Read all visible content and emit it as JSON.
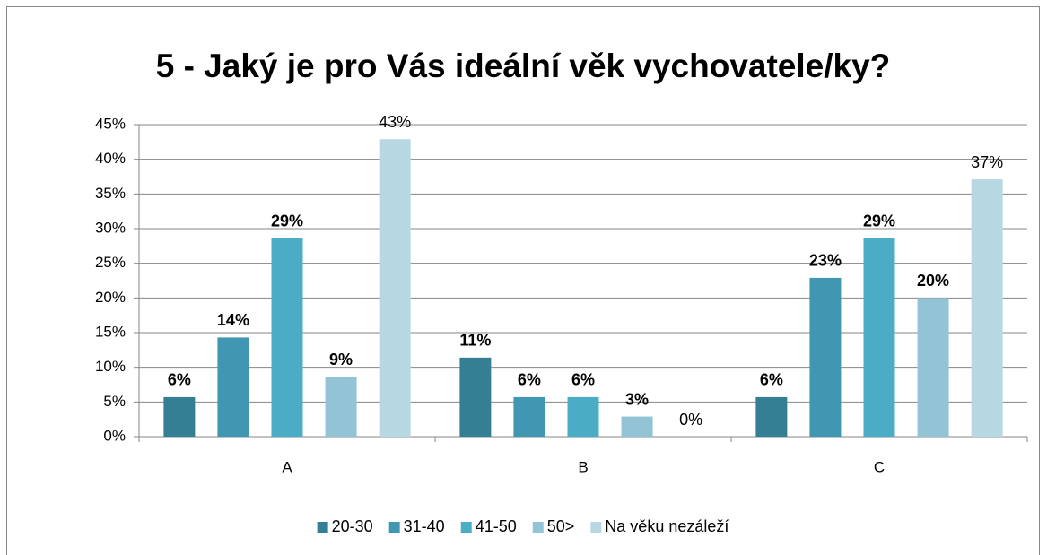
{
  "chart_data": {
    "type": "bar",
    "title": "5 - Jaký je pro Vás ideální věk vychovatele/ky?",
    "categories": [
      "A",
      "B",
      "C"
    ],
    "series": [
      {
        "name": "20-30",
        "color": "#357f95",
        "label_weight": "bold",
        "values": [
          5.7,
          11.4,
          5.7
        ],
        "value_labels": [
          "6%",
          "11%",
          "6%"
        ]
      },
      {
        "name": "31-40",
        "color": "#4197b2",
        "label_weight": "bold",
        "values": [
          14.3,
          5.7,
          22.9
        ],
        "value_labels": [
          "14%",
          "6%",
          "23%"
        ]
      },
      {
        "name": "41-50",
        "color": "#4bacc6",
        "label_weight": "bold",
        "values": [
          28.6,
          5.7,
          28.6
        ],
        "value_labels": [
          "29%",
          "6%",
          "29%"
        ]
      },
      {
        "name": "50>",
        "color": "#93c4d6",
        "label_weight": "bold",
        "values": [
          8.6,
          2.9,
          20.0
        ],
        "value_labels": [
          "9%",
          "3%",
          "20%"
        ]
      },
      {
        "name": "Na věku nezáleží",
        "color": "#b7d7e2",
        "label_weight": "normal",
        "values": [
          42.9,
          0,
          37.1
        ],
        "value_labels": [
          "43%",
          "0%",
          "37%"
        ]
      }
    ],
    "ylim": [
      0,
      45
    ],
    "yticks": [
      {
        "value": 0,
        "label": "0%"
      },
      {
        "value": 5,
        "label": "5%"
      },
      {
        "value": 10,
        "label": "10%"
      },
      {
        "value": 15,
        "label": "15%"
      },
      {
        "value": 20,
        "label": "20%"
      },
      {
        "value": 25,
        "label": "25%"
      },
      {
        "value": 30,
        "label": "30%"
      },
      {
        "value": 35,
        "label": "35%"
      },
      {
        "value": 40,
        "label": "40%"
      },
      {
        "value": 45,
        "label": "45%"
      }
    ],
    "grid": true,
    "legend": "bottom"
  }
}
